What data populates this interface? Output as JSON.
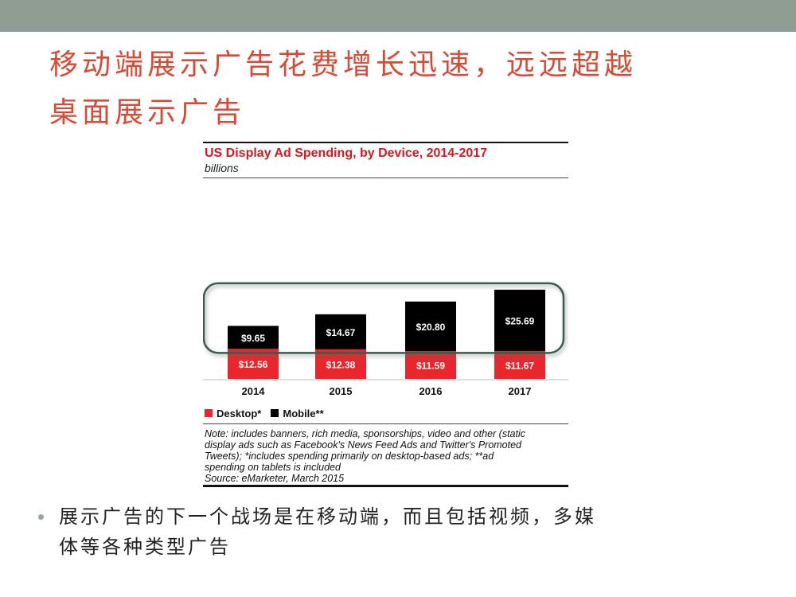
{
  "slide": {
    "title_lines": [
      "移动端展示广告花费增长迅速，远远超越",
      "桌面展示广告"
    ],
    "bullet_lines": [
      "展示广告的下一个战场是在移动端，而且包括视频，多媒",
      "体等各种类型广告"
    ]
  },
  "colors": {
    "top_band": "#8f9d93",
    "title": "#d94a35",
    "desktop": "#e8262b",
    "mobile": "#000000",
    "chart_title": "#d7181f",
    "highlight_box": "#3e5a4e"
  },
  "chart_data": {
    "type": "bar",
    "stacked": true,
    "title": "US Display Ad Spending, by Device, 2014-2017",
    "subtitle": "billions",
    "categories": [
      "2014",
      "2015",
      "2016",
      "2017"
    ],
    "series": [
      {
        "name": "Desktop*",
        "color": "#e8262b",
        "values": [
          12.56,
          12.38,
          11.59,
          11.67
        ],
        "labels": [
          "$12.56",
          "$12.38",
          "$11.59",
          "$11.67"
        ]
      },
      {
        "name": "Mobile**",
        "color": "#000000",
        "values": [
          9.65,
          14.67,
          20.8,
          25.69
        ],
        "labels": [
          "$9.65",
          "$14.67",
          "$20.80",
          "$25.69"
        ]
      }
    ],
    "legend_position": "bottom-left",
    "note_lines": [
      "Note: includes banners, rich media, sponsorships, video and other (static",
      "display ads such as Facebook's News Feed Ads and Twitter's Promoted",
      "Tweets); *includes spending primarily on desktop-based ads; **ad",
      "spending on tablets is included",
      "Source: eMarketer, March 2015"
    ]
  }
}
